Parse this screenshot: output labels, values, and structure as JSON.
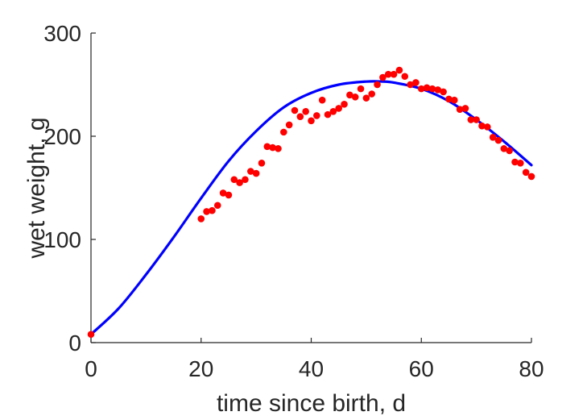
{
  "chart_data": {
    "type": "scatter",
    "xlabel": "time since birth, d",
    "ylabel": "wet weight, g",
    "xlim": [
      0,
      80
    ],
    "ylim": [
      0,
      300
    ],
    "xticks": [
      0,
      20,
      40,
      60,
      80
    ],
    "yticks": [
      0,
      100,
      200,
      300
    ],
    "xtick_labels": [
      "0",
      "20",
      "40",
      "60",
      "80"
    ],
    "ytick_labels": [
      "0",
      "100",
      "200",
      "300"
    ],
    "grid": false,
    "legend": "none",
    "colors": {
      "points": "#ff0000",
      "line": "#0000ff",
      "axes": "#262626"
    },
    "series": [
      {
        "kind": "scatter",
        "x": [
          0,
          20,
          21,
          22,
          23,
          24,
          25,
          26,
          27,
          28,
          29,
          30,
          31,
          32,
          33,
          34,
          35,
          36,
          37,
          38,
          39,
          40,
          41,
          42,
          43,
          44,
          45,
          46,
          47,
          48,
          49,
          50,
          51,
          52,
          53,
          54,
          55,
          56,
          57,
          58,
          59,
          60,
          61,
          62,
          63,
          64,
          65,
          66,
          67,
          68,
          69,
          70,
          71,
          72,
          73,
          74,
          75,
          76,
          77,
          78,
          79,
          80
        ],
        "y": [
          8,
          120,
          127,
          128,
          133,
          145,
          143,
          158,
          155,
          158,
          166,
          164,
          174,
          190,
          189,
          188,
          204,
          211,
          225,
          219,
          224,
          215,
          220,
          235,
          221,
          224,
          227,
          231,
          240,
          238,
          246,
          237,
          241,
          250,
          257,
          260,
          260,
          264,
          258,
          250,
          252,
          246,
          247,
          246,
          245,
          243,
          236,
          235,
          226,
          227,
          216,
          216,
          210,
          209,
          199,
          196,
          188,
          186,
          175,
          174,
          165,
          161
        ]
      },
      {
        "kind": "line",
        "x": [
          0,
          5,
          10,
          15,
          20,
          25,
          30,
          35,
          40,
          45,
          50,
          53,
          55,
          60,
          65,
          70,
          75,
          80
        ],
        "y": [
          8,
          33,
          66,
          102,
          140,
          176,
          205,
          228,
          242,
          250,
          253,
          253,
          252,
          246,
          234,
          216,
          195,
          172
        ]
      }
    ]
  }
}
